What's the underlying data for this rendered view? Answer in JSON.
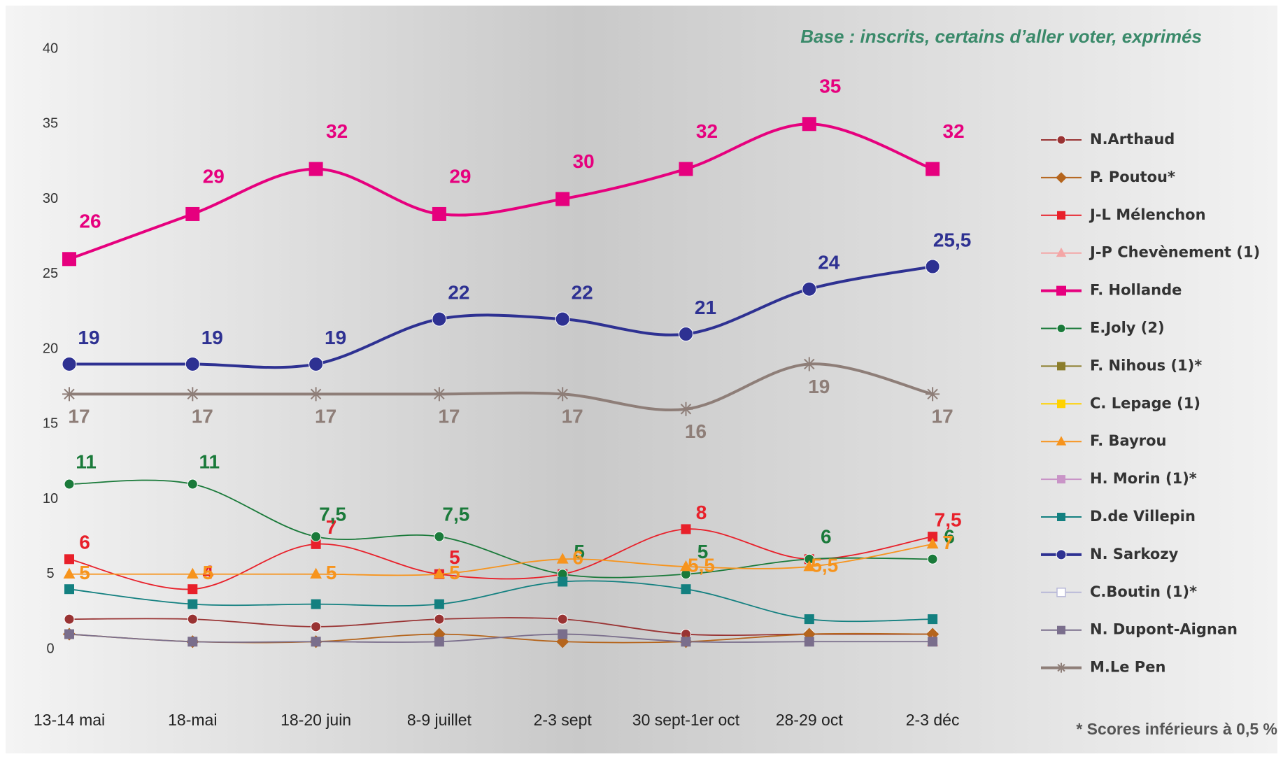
{
  "chart_data": {
    "type": "line",
    "subtitle": "Base : inscrits, certains d’aller voter, exprimés",
    "note": "* Scores inférieurs à 0,5 %",
    "categories": [
      "13-14 mai",
      "18-mai",
      "18-20 juin",
      "8-9 juillet",
      "2-3 sept",
      "30 sept-1er oct",
      "28-29 oct",
      "2-3 déc"
    ],
    "ylim": [
      0,
      40
    ],
    "yticks": [
      0,
      5,
      10,
      15,
      20,
      25,
      30,
      35,
      40
    ],
    "legend": "right",
    "series": [
      {
        "name": "N.Arthaud",
        "color": "#993333",
        "marker": "circle",
        "values": [
          2,
          2,
          1.5,
          2,
          2,
          1,
          1,
          1
        ]
      },
      {
        "name": "P. Poutou*",
        "color": "#b5651d",
        "marker": "diamond",
        "values": [
          1,
          0.5,
          0.5,
          1,
          0.5,
          0.5,
          1,
          1
        ]
      },
      {
        "name": "J-L Mélenchon",
        "color": "#e8202a",
        "marker": "square",
        "values": [
          6,
          4,
          7,
          5,
          5,
          8,
          6,
          7.5
        ],
        "value_labels": [
          "6",
          "4",
          "7",
          "5",
          null,
          "8",
          null,
          "7,5"
        ]
      },
      {
        "name": "J-P Chevènement (1)",
        "color": "#f4a6a6",
        "marker": "triangle",
        "values": [
          null,
          null,
          null,
          null,
          null,
          null,
          null,
          0.5
        ]
      },
      {
        "name": "F. Hollande",
        "color": "#e6007e",
        "marker": "square",
        "emphasis": true,
        "values": [
          26,
          29,
          32,
          29,
          30,
          32,
          35,
          32
        ],
        "value_labels": [
          "26",
          "29",
          "32",
          "29",
          "30",
          "32",
          "35",
          "32"
        ]
      },
      {
        "name": "E.Joly (2)",
        "color": "#1a7a3a",
        "marker": "circle",
        "values": [
          11,
          11,
          7.5,
          7.5,
          5,
          5,
          6,
          6
        ],
        "value_labels": [
          "11",
          "11",
          "7,5",
          "7,5",
          "5",
          "5",
          "6",
          "6"
        ]
      },
      {
        "name": "F. Nihous (1)*",
        "color": "#8b7d2b",
        "marker": "square",
        "values": [
          null,
          null,
          null,
          null,
          null,
          null,
          null,
          null
        ]
      },
      {
        "name": "C. Lepage (1)",
        "color": "#ffd200",
        "marker": "square",
        "values": [
          null,
          null,
          null,
          null,
          null,
          null,
          null,
          null
        ]
      },
      {
        "name": "F. Bayrou",
        "color": "#f7941d",
        "marker": "triangle",
        "values": [
          5,
          5,
          5,
          5,
          6,
          5.5,
          5.5,
          7
        ],
        "value_labels": [
          "5",
          "5",
          "5",
          "5",
          "6",
          "5,5",
          "5,5",
          "7"
        ]
      },
      {
        "name": "H. Morin  (1)*",
        "color": "#c994c7",
        "marker": "square",
        "values": [
          null,
          null,
          null,
          null,
          null,
          null,
          null,
          null
        ]
      },
      {
        "name": "D.de Villepin",
        "color": "#138080",
        "marker": "square",
        "values": [
          4,
          3,
          3,
          3,
          4.5,
          4,
          2,
          2
        ]
      },
      {
        "name": "N. Sarkozy",
        "color": "#2e3192",
        "marker": "circle",
        "emphasis": true,
        "values": [
          19,
          19,
          19,
          22,
          22,
          21,
          24,
          25.5
        ],
        "value_labels": [
          "19",
          "19",
          "19",
          "22",
          "22",
          "21",
          "24",
          "25,5"
        ]
      },
      {
        "name": "C.Boutin  (1)*",
        "color": "#b8b8d8",
        "marker": "open-square",
        "values": [
          null,
          null,
          null,
          null,
          null,
          null,
          null,
          null
        ]
      },
      {
        "name": "N. Dupont-Aignan",
        "color": "#7a6e8c",
        "marker": "square",
        "values": [
          1,
          0.5,
          0.5,
          0.5,
          1,
          0.5,
          0.5,
          0.5
        ]
      },
      {
        "name": "M.Le Pen",
        "color": "#8e7e78",
        "marker": "star",
        "emphasis": true,
        "values": [
          17,
          17,
          17,
          17,
          17,
          16,
          19,
          17
        ],
        "value_labels": [
          "17",
          "17",
          "17",
          "17",
          "17",
          "16",
          "19",
          "17"
        ]
      }
    ]
  }
}
